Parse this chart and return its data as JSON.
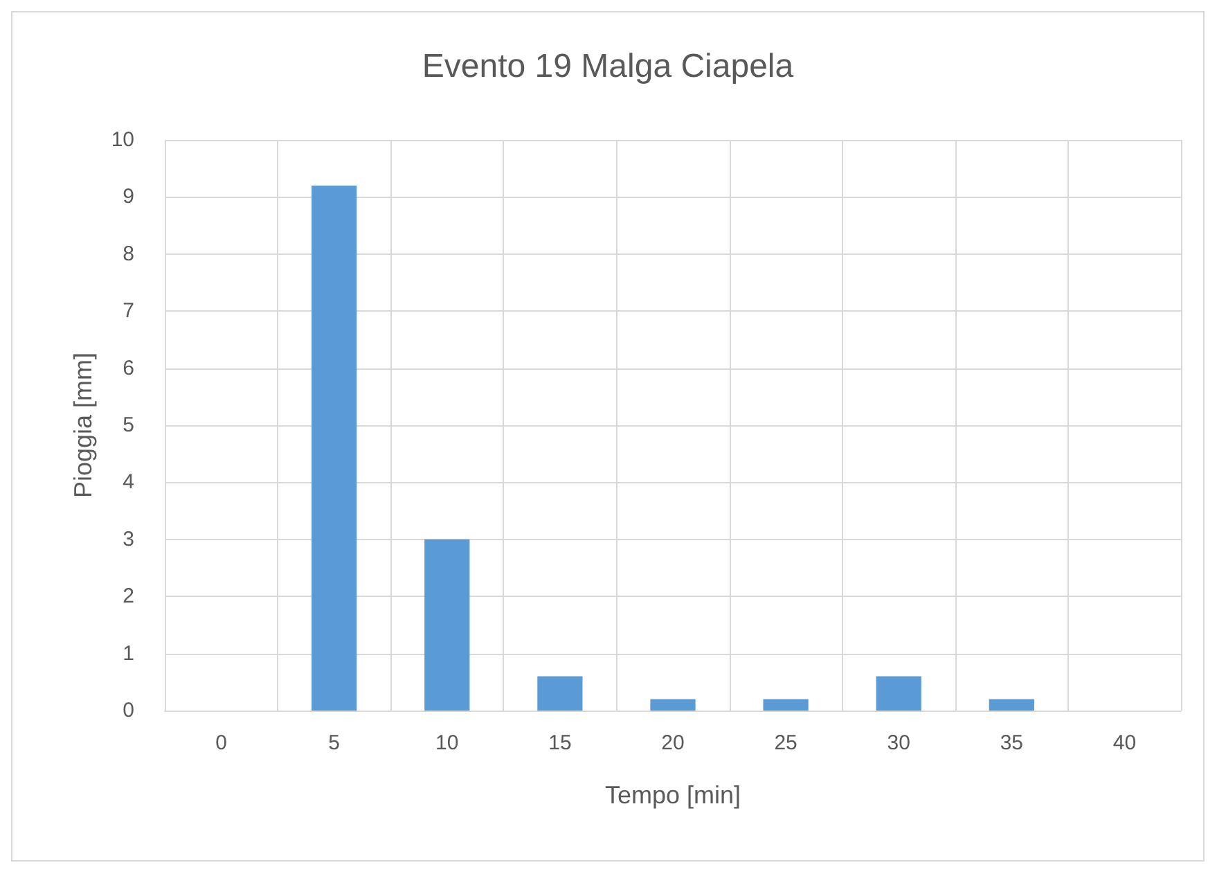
{
  "chart_data": {
    "type": "bar",
    "title": "Evento 19 Malga Ciapela",
    "xlabel": "Tempo [min]",
    "ylabel": "Pioggia [mm]",
    "categories": [
      "0",
      "5",
      "10",
      "15",
      "20",
      "25",
      "30",
      "35",
      "40"
    ],
    "values": [
      0,
      9.2,
      3.0,
      0.6,
      0.2,
      0.2,
      0.6,
      0.2,
      0
    ],
    "color": "#5b9bd5",
    "ylim": [
      0,
      10
    ],
    "yticks": [
      0,
      1,
      2,
      3,
      4,
      5,
      6,
      7,
      8,
      9,
      10
    ],
    "grid": true
  }
}
